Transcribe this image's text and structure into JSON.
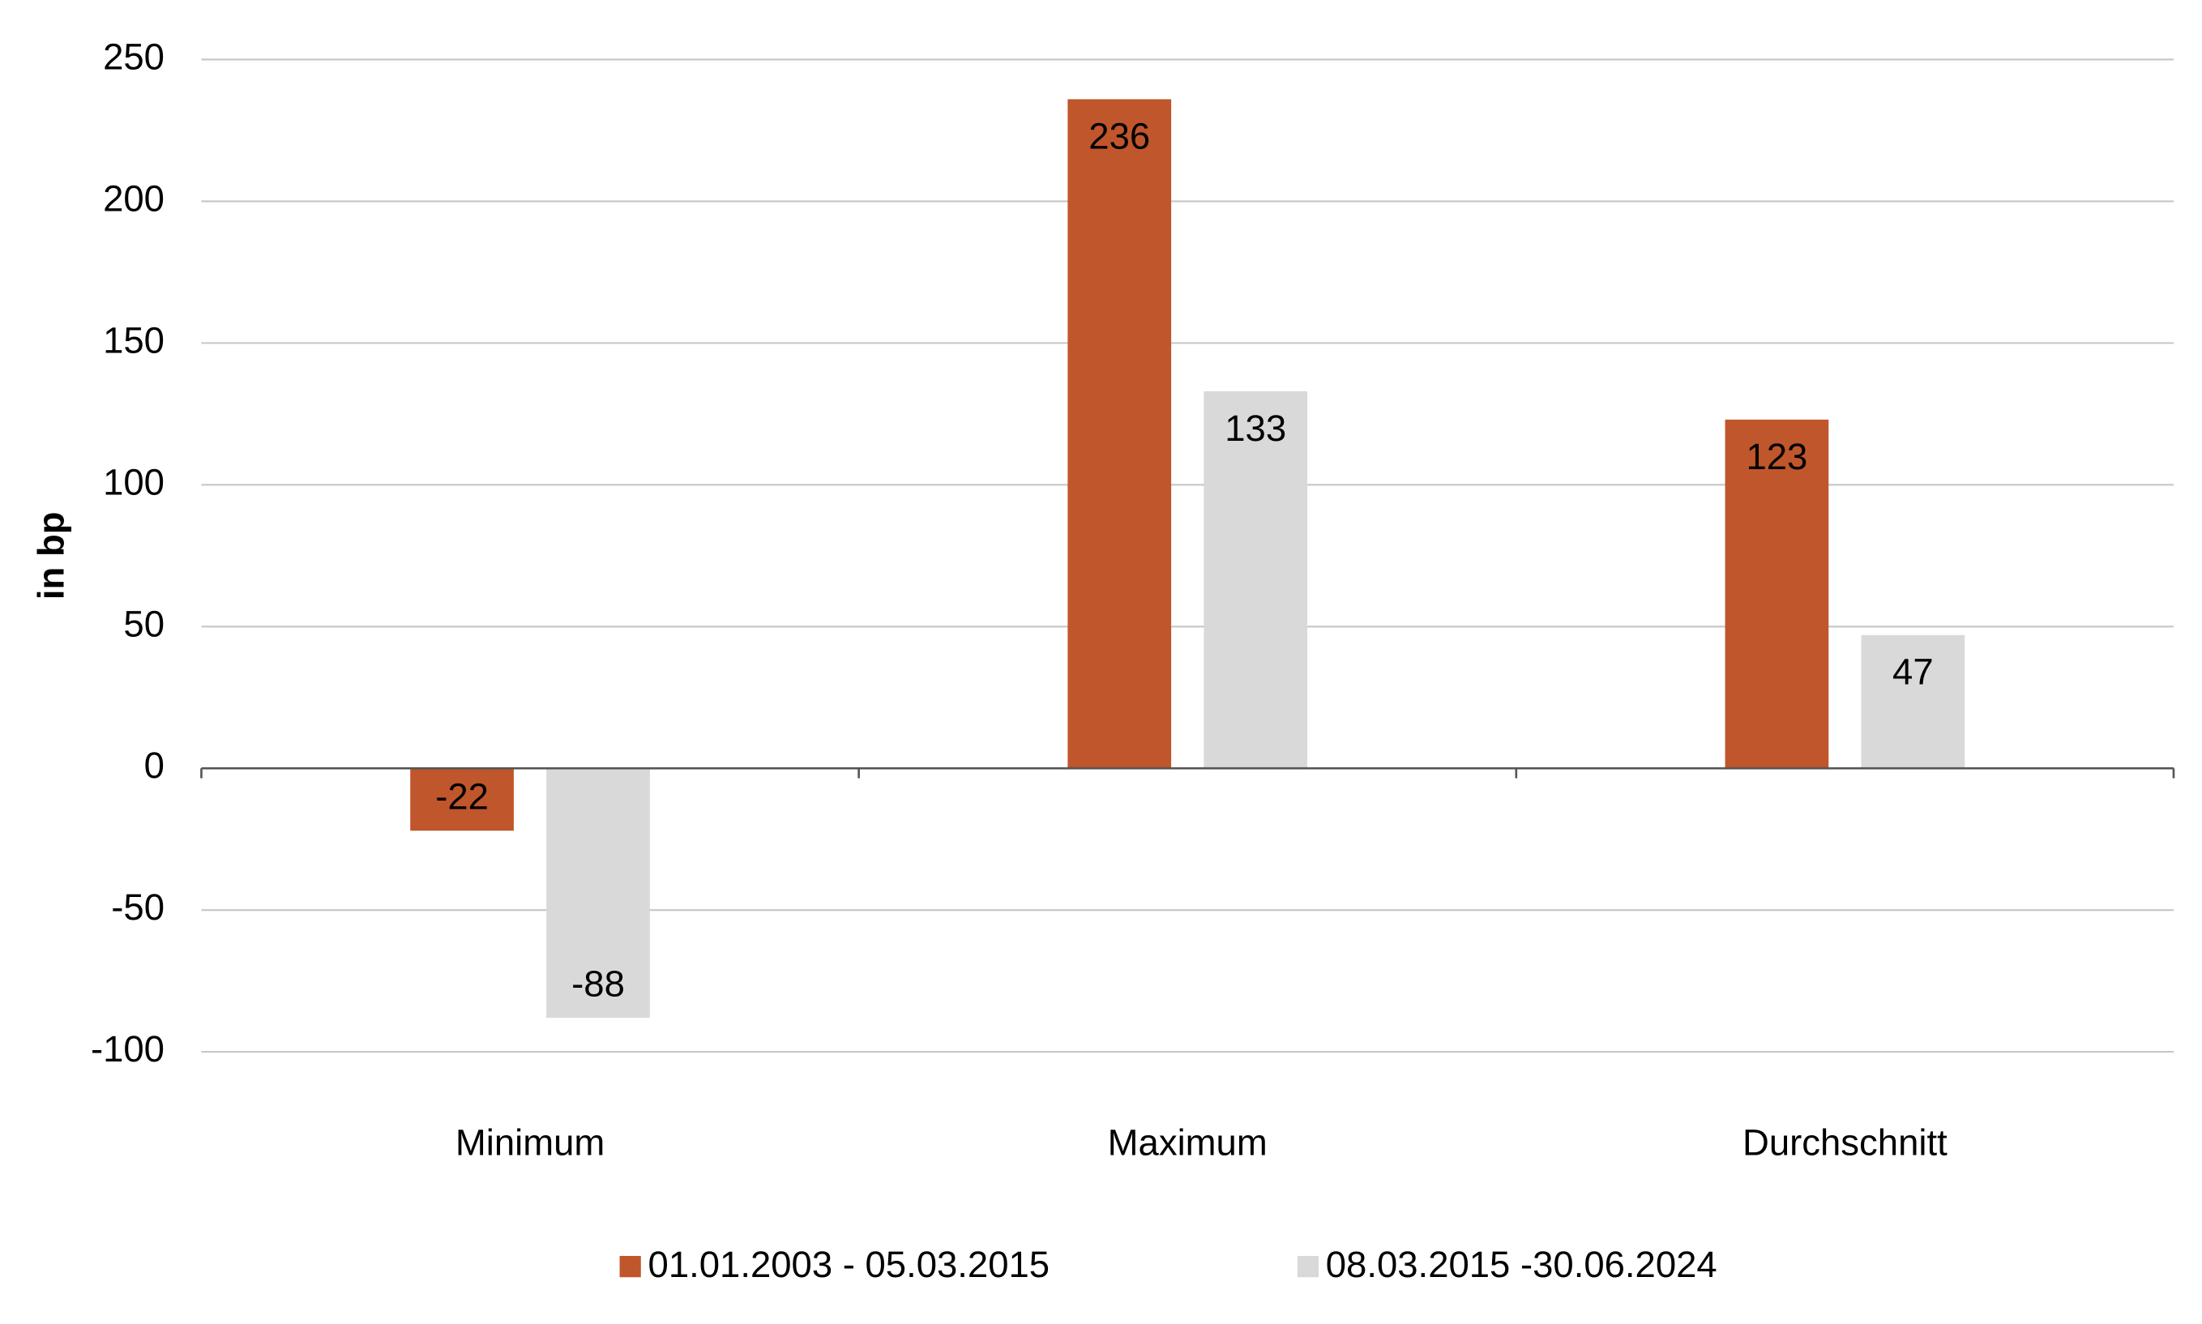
{
  "chart_data": {
    "type": "bar",
    "y_label": "in bp",
    "categories": [
      "Minimum",
      "Maximum",
      "Durchschnitt"
    ],
    "series": [
      {
        "name": "01.01.2003 - 05.03.2015",
        "color": "#c0562b",
        "values": [
          -22,
          236,
          123
        ]
      },
      {
        "name": "08.03.2015 -30.06.2024",
        "color": "#d9d9d9",
        "values": [
          -88,
          133,
          47
        ]
      }
    ],
    "ylim": [
      -100,
      250
    ],
    "yticks": [
      -100,
      -50,
      0,
      50,
      100,
      150,
      200,
      250
    ],
    "grid": true,
    "legend": "bottom"
  }
}
